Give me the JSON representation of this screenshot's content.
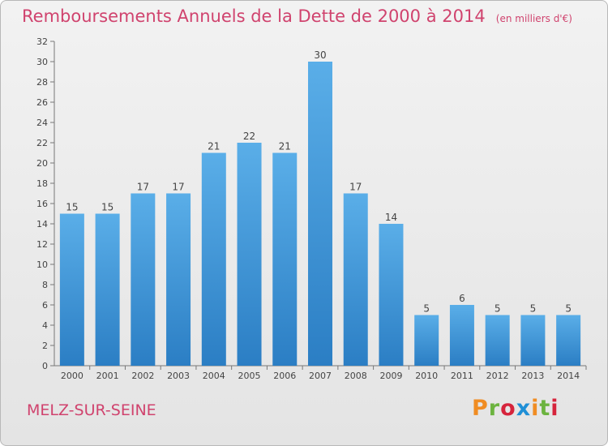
{
  "title": "Remboursements Annuels de la Dette de 2000 à 2014",
  "unit_note": "(en milliers d'€)",
  "commune": "MELZ-SUR-SEINE",
  "brand": "Proxiti",
  "colors": {
    "title": "#d0436e",
    "bar_top": "#5aaee8",
    "bar_bottom": "#2b7ec4",
    "brand_letters": [
      "#f08c22",
      "#6cb33f",
      "#d6243c",
      "#1f8fd6",
      "#f08c22",
      "#6cb33f",
      "#d6243c"
    ]
  },
  "chart_data": {
    "type": "bar",
    "title": "Remboursements Annuels de la Dette de 2000 à 2014",
    "categories": [
      "2000",
      "2001",
      "2002",
      "2003",
      "2004",
      "2005",
      "2006",
      "2007",
      "2008",
      "2009",
      "2010",
      "2011",
      "2012",
      "2013",
      "2014"
    ],
    "values": [
      15,
      15,
      17,
      17,
      21,
      22,
      21,
      30,
      17,
      14,
      5,
      6,
      5,
      5,
      5
    ],
    "ylim": [
      0,
      32
    ],
    "yticks": [
      0,
      2,
      4,
      6,
      8,
      10,
      12,
      14,
      16,
      18,
      20,
      22,
      24,
      26,
      28,
      30,
      32
    ],
    "grid": false,
    "legend": "none"
  }
}
